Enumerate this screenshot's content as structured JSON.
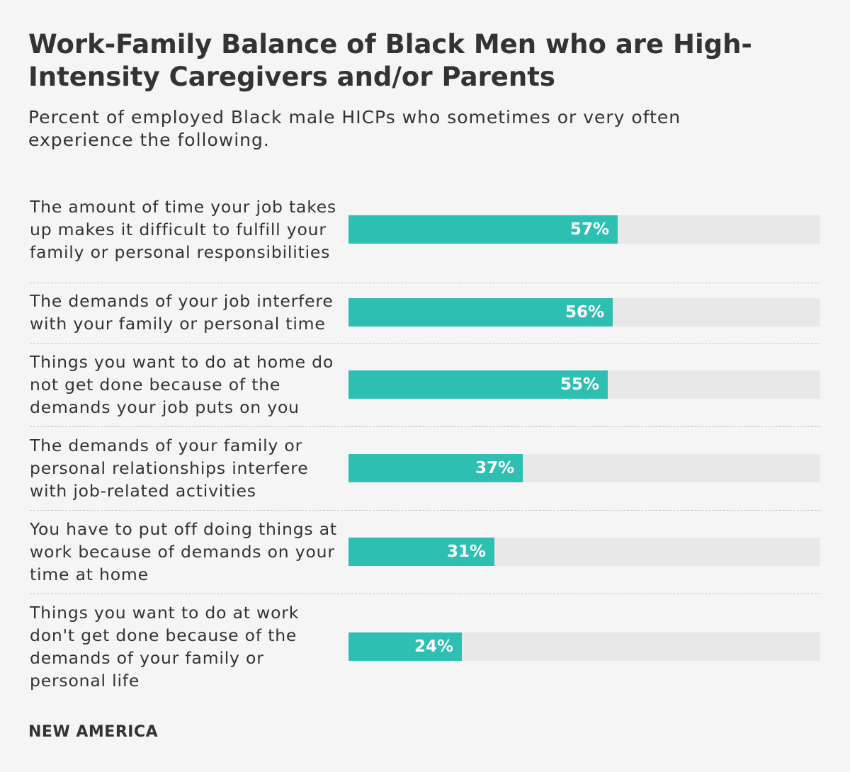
{
  "chart_data": {
    "type": "bar",
    "orientation": "horizontal",
    "title": "Work-Family Balance of Black Men who are High-Intensity Caregivers and/or Parents",
    "subtitle": "Percent of employed Black male HICPs who sometimes or very often experience the following.",
    "categories": [
      "The amount of time your job takes up makes it difficult to fulfill your family or personal responsibilities",
      "The demands of your job interfere with your family or personal time",
      "Things you want to do at home do not get done because of the demands your job puts on you",
      "The demands of your family or personal relationships interfere with job-related activities",
      "You have to put off doing things at work because of demands on your time at home",
      "Things you want to do at work don't get done because of the demands of your family or personal life"
    ],
    "values": [
      57,
      56,
      55,
      37,
      31,
      24
    ],
    "value_labels": [
      "57%",
      "56%",
      "55%",
      "37%",
      "31%",
      "24%"
    ],
    "xlim": [
      0,
      100
    ],
    "xlabel": "",
    "ylabel": "",
    "colors": {
      "bar": "#2ebfb3",
      "track": "#e8e8e8",
      "label": "#ffffff"
    }
  },
  "footer": {
    "brand": "NEW AMERICA"
  }
}
